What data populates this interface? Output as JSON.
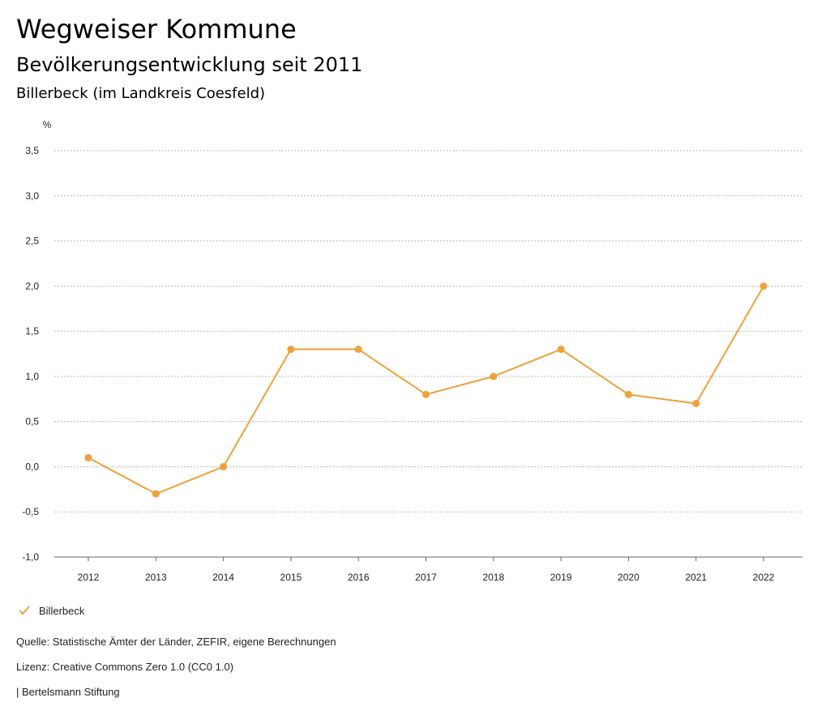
{
  "header": {
    "title": "Wegweiser Kommune",
    "subtitle": "Bevölkerungsentwicklung seit 2011",
    "region": "Billerbeck (im Landkreis Coesfeld)"
  },
  "colors": {
    "series": "#f0a03c",
    "grid": "#bbbbbb",
    "axis": "#666666"
  },
  "chart_data": {
    "type": "line",
    "title": "Bevölkerungsentwicklung seit 2011",
    "ylabel": "%",
    "xlabel": "",
    "categories": [
      "2012",
      "2013",
      "2014",
      "2015",
      "2016",
      "2017",
      "2018",
      "2019",
      "2020",
      "2021",
      "2022"
    ],
    "series": [
      {
        "name": "Billerbeck",
        "values": [
          0.1,
          -0.3,
          0.0,
          1.3,
          1.3,
          0.8,
          1.0,
          1.3,
          0.8,
          0.7,
          2.0
        ]
      }
    ],
    "ylim": [
      -1.0,
      3.5
    ],
    "yticks": [
      -1.0,
      -0.5,
      0.0,
      0.5,
      1.0,
      1.5,
      2.0,
      2.5,
      3.0,
      3.5
    ],
    "ytick_labels": [
      "-1,0",
      "-0,5",
      "0,0",
      "0,5",
      "1,0",
      "1,5",
      "2,0",
      "2,5",
      "3,0",
      "3,5"
    ],
    "grid": true,
    "legend_position": "bottom-left"
  },
  "legend": {
    "label": "Billerbeck"
  },
  "footer": {
    "source": "Quelle: Statistische Ämter der Länder, ZEFIR, eigene Berechnungen",
    "license": "Lizenz: Creative Commons Zero 1.0 (CC0 1.0)",
    "publisher": "| Bertelsmann Stiftung"
  }
}
